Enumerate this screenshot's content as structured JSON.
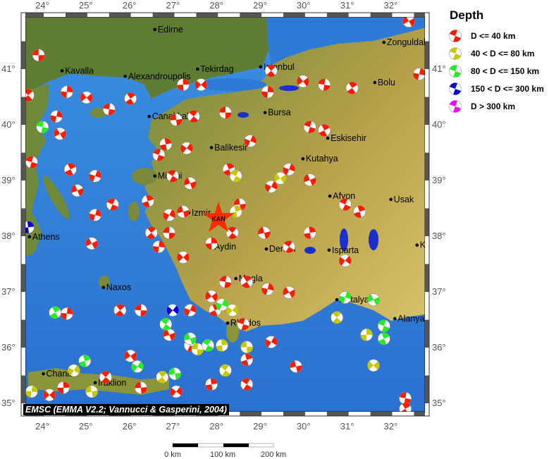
{
  "legend": {
    "title": "Depth",
    "items": [
      {
        "label": "D <= 40 km",
        "color": "#ff1a00"
      },
      {
        "label": "40 < D <= 80 km",
        "color": "#c8c800"
      },
      {
        "label": "80 < D <= 150 km",
        "color": "#22ee22"
      },
      {
        "label": "150 < D <= 300 km",
        "color": "#0000e0"
      },
      {
        "label": "D > 300 km",
        "color": "#ff00ff"
      }
    ]
  },
  "credit": "EMSC (EMMA V2.2; Vannucci & Gasperini, 2004)",
  "axes": {
    "lon_labels": [
      "24°",
      "25°",
      "26°",
      "27°",
      "28°",
      "29°",
      "30°",
      "31°",
      "32°"
    ],
    "lon_values": [
      24,
      25,
      26,
      27,
      28,
      29,
      30,
      31,
      32
    ],
    "lat_labels": [
      "41°",
      "40°",
      "39°",
      "38°",
      "37°",
      "36°",
      "35°"
    ],
    "lat_values": [
      41,
      40,
      39,
      38,
      37,
      36,
      35
    ]
  },
  "scale_bar": {
    "labels": [
      "0 km",
      "100 km",
      "200 km"
    ]
  },
  "epicenter": {
    "label": "KAN",
    "lon": 28.01,
    "lat": 38.32,
    "color": "#ff2a00"
  },
  "cities": [
    {
      "name": "Edirne",
      "lon": 26.55,
      "lat": 41.71
    },
    {
      "name": "Zonguldak",
      "lon": 31.81,
      "lat": 41.48
    },
    {
      "name": "Kavalla",
      "lon": 24.42,
      "lat": 40.97
    },
    {
      "name": "Alexandroupolis",
      "lon": 25.87,
      "lat": 40.87
    },
    {
      "name": "Tekirdag",
      "lon": 27.53,
      "lat": 41.0
    },
    {
      "name": "Istanbul",
      "lon": 28.98,
      "lat": 41.04
    },
    {
      "name": "Bolu",
      "lon": 31.6,
      "lat": 40.76
    },
    {
      "name": "Canakkale",
      "lon": 26.42,
      "lat": 40.15
    },
    {
      "name": "Bursa",
      "lon": 29.08,
      "lat": 40.22
    },
    {
      "name": "Balikesir",
      "lon": 27.85,
      "lat": 39.59
    },
    {
      "name": "Eskisehir",
      "lon": 30.52,
      "lat": 39.76
    },
    {
      "name": "Kutahya",
      "lon": 29.95,
      "lat": 39.39
    },
    {
      "name": "Mitilini",
      "lon": 26.55,
      "lat": 39.08
    },
    {
      "name": "Izmir",
      "lon": 27.33,
      "lat": 38.42
    },
    {
      "name": "Afyon",
      "lon": 30.57,
      "lat": 38.72
    },
    {
      "name": "Usak",
      "lon": 31.97,
      "lat": 38.66
    },
    {
      "name": "Athens",
      "lon": 23.67,
      "lat": 37.99
    },
    {
      "name": "Aydin",
      "lon": 27.85,
      "lat": 37.81
    },
    {
      "name": "Denizli",
      "lon": 29.11,
      "lat": 37.77
    },
    {
      "name": "Isparta",
      "lon": 30.55,
      "lat": 37.75
    },
    {
      "name": "Naxos",
      "lon": 25.37,
      "lat": 37.08
    },
    {
      "name": "Mugla",
      "lon": 28.41,
      "lat": 37.24
    },
    {
      "name": "Antalya",
      "lon": 30.73,
      "lat": 36.86
    },
    {
      "name": "Rhodos",
      "lon": 28.22,
      "lat": 36.44
    },
    {
      "name": "Alanya",
      "lon": 32.06,
      "lat": 36.52
    },
    {
      "name": "Chania",
      "lon": 23.99,
      "lat": 35.53
    },
    {
      "name": "Iraklion",
      "lon": 25.18,
      "lat": 35.37
    },
    {
      "name": "Konya",
      "lon": 32.57,
      "lat": 37.84
    }
  ],
  "events": [
    [
      23.88,
      41.25,
      1
    ],
    [
      23.64,
      40.53,
      1
    ],
    [
      24.53,
      40.59,
      1
    ],
    [
      24.98,
      40.49,
      1
    ],
    [
      25.5,
      40.28,
      1
    ],
    [
      25.99,
      40.47,
      1
    ],
    [
      24.29,
      40.15,
      1
    ],
    [
      24.37,
      39.84,
      1
    ],
    [
      23.72,
      39.33,
      1
    ],
    [
      24.61,
      39.2,
      1
    ],
    [
      25.18,
      39.08,
      1
    ],
    [
      24.77,
      38.82,
      1
    ],
    [
      25.58,
      38.57,
      1
    ],
    [
      26.39,
      38.63,
      1
    ],
    [
      26.88,
      38.38,
      1
    ],
    [
      27.2,
      38.44,
      1
    ],
    [
      26.96,
      39.08,
      1
    ],
    [
      26.8,
      39.65,
      1
    ],
    [
      27.28,
      39.58,
      1
    ],
    [
      27.04,
      40.09,
      1
    ],
    [
      27.44,
      40.15,
      1
    ],
    [
      27.2,
      40.72,
      1
    ],
    [
      27.61,
      40.72,
      1
    ],
    [
      28.17,
      40.22,
      1
    ],
    [
      29.22,
      40.97,
      1
    ],
    [
      29.14,
      40.59,
      1
    ],
    [
      29.95,
      40.78,
      1
    ],
    [
      30.44,
      40.72,
      1
    ],
    [
      31.08,
      40.66,
      1
    ],
    [
      32.62,
      40.91,
      1
    ],
    [
      32.38,
      41.86,
      1
    ],
    [
      30.11,
      39.96,
      1
    ],
    [
      30.44,
      39.9,
      1
    ],
    [
      29.63,
      39.2,
      1
    ],
    [
      30.11,
      39.01,
      1
    ],
    [
      30.92,
      38.57,
      1
    ],
    [
      31.25,
      38.44,
      1
    ],
    [
      29.22,
      38.89,
      1
    ],
    [
      29.06,
      38.06,
      1
    ],
    [
      29.63,
      37.81,
      1
    ],
    [
      30.11,
      38.06,
      1
    ],
    [
      30.92,
      37.56,
      1
    ],
    [
      28.5,
      38.57,
      1
    ],
    [
      28.33,
      38.06,
      1
    ],
    [
      27.85,
      37.87,
      1
    ],
    [
      27.2,
      37.62,
      1
    ],
    [
      26.88,
      38.06,
      1
    ],
    [
      26.47,
      38.06,
      1
    ],
    [
      26.64,
      37.81,
      1
    ],
    [
      27.85,
      36.92,
      1
    ],
    [
      28.17,
      37.18,
      1
    ],
    [
      28.66,
      37.18,
      1
    ],
    [
      29.14,
      37.05,
      1
    ],
    [
      29.63,
      36.99,
      1
    ],
    [
      28.58,
      36.42,
      1
    ],
    [
      27.93,
      36.67,
      1
    ],
    [
      27.36,
      36.67,
      1
    ],
    [
      26.88,
      36.23,
      1
    ],
    [
      27.36,
      36.04,
      1
    ],
    [
      28.66,
      35.78,
      1
    ],
    [
      29.22,
      36.1,
      1
    ],
    [
      29.79,
      35.66,
      1
    ],
    [
      28.66,
      35.34,
      1
    ],
    [
      27.85,
      35.34,
      1
    ],
    [
      27.04,
      35.21,
      1
    ],
    [
      26.23,
      35.28,
      1
    ],
    [
      25.42,
      35.47,
      1
    ],
    [
      24.45,
      35.28,
      1
    ],
    [
      24.13,
      35.15,
      1
    ],
    [
      26.23,
      36.67,
      1
    ],
    [
      25.75,
      36.67,
      1
    ],
    [
      24.53,
      36.61,
      1
    ],
    [
      25.99,
      35.85,
      1
    ],
    [
      32.3,
      35.09,
      1
    ],
    [
      32.3,
      34.9,
      1
    ],
    [
      25.18,
      38.38,
      1
    ],
    [
      25.1,
      37.87,
      1
    ],
    [
      26.64,
      39.46,
      1
    ],
    [
      28.25,
      39.2,
      1
    ],
    [
      28.74,
      39.71,
      1
    ],
    [
      27.36,
      38.95,
      1
    ],
    [
      28.41,
      39.08,
      2
    ],
    [
      28.41,
      38.44,
      2
    ],
    [
      24.69,
      35.59,
      2
    ],
    [
      25.1,
      35.21,
      2
    ],
    [
      28.17,
      35.59,
      2
    ],
    [
      28.09,
      36.04,
      2
    ],
    [
      28.33,
      36.67,
      2
    ],
    [
      28.66,
      36.01,
      2
    ],
    [
      30.73,
      36.54,
      2
    ],
    [
      31.41,
      36.23,
      2
    ],
    [
      31.57,
      35.68,
      2
    ],
    [
      27.53,
      35.97,
      2
    ],
    [
      26.72,
      35.47,
      2
    ],
    [
      23.72,
      35.21,
      2
    ],
    [
      29.43,
      39.04,
      2
    ],
    [
      23.97,
      39.96,
      3
    ],
    [
      24.26,
      36.63,
      3
    ],
    [
      30.92,
      36.9,
      3
    ],
    [
      31.57,
      36.86,
      3
    ],
    [
      31.81,
      36.39,
      3
    ],
    [
      31.81,
      36.16,
      3
    ],
    [
      28.09,
      36.77,
      3
    ],
    [
      27.36,
      36.16,
      3
    ],
    [
      27.77,
      36.04,
      3
    ],
    [
      24.94,
      35.76,
      3
    ],
    [
      26.15,
      35.66,
      3
    ],
    [
      27.01,
      35.53,
      3
    ],
    [
      26.8,
      36.42,
      3
    ],
    [
      23.64,
      38.16,
      4
    ],
    [
      26.96,
      36.67,
      4
    ]
  ]
}
